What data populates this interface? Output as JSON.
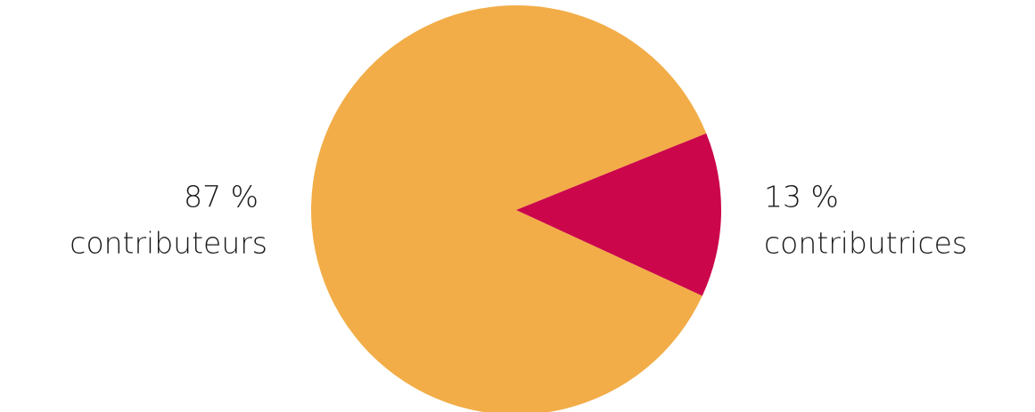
{
  "chart_data": {
    "type": "pie",
    "categories": [
      "contributeurs",
      "contributrices"
    ],
    "values": [
      87,
      13
    ],
    "value_labels": [
      "87 %",
      "13 %"
    ],
    "colors": [
      "#f2ad48",
      "#cb064b"
    ]
  }
}
